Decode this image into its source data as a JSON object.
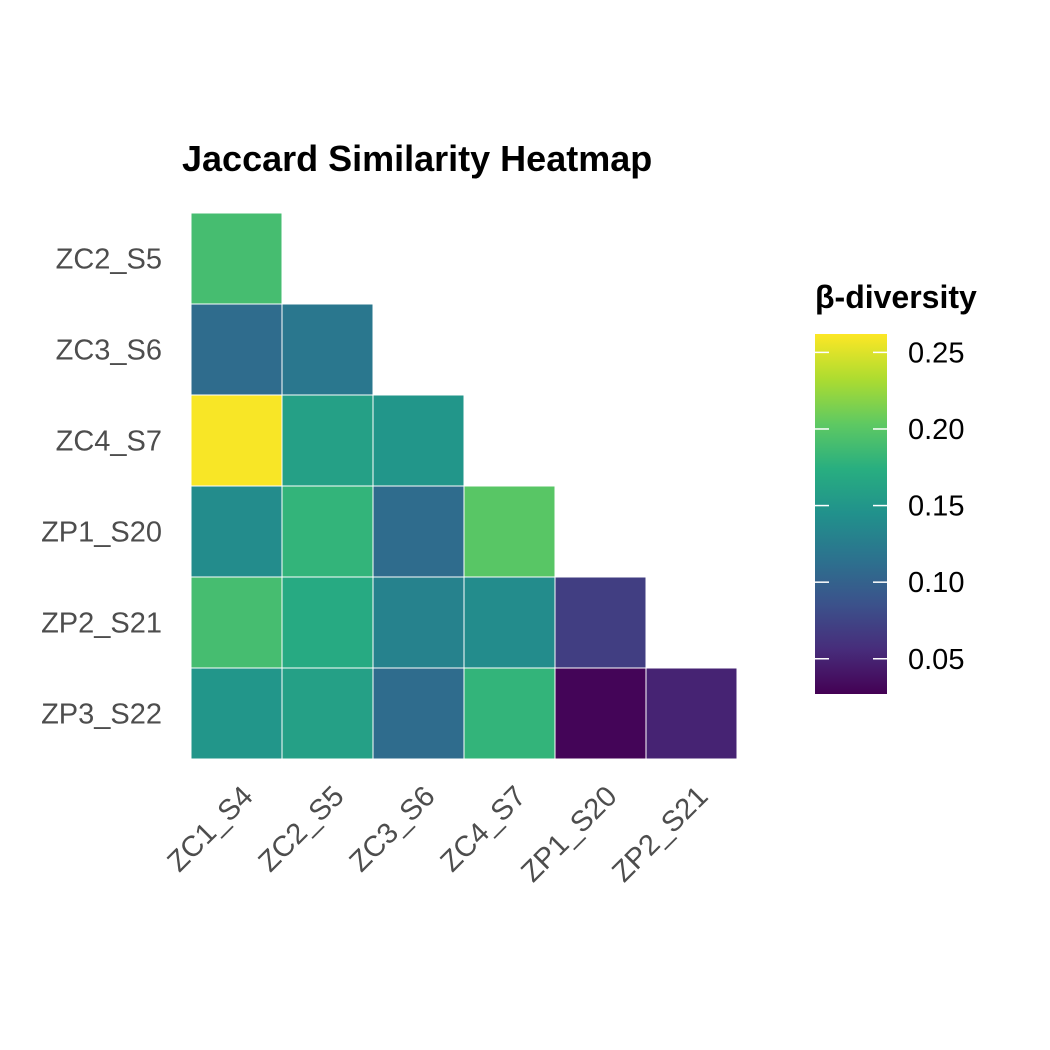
{
  "chart_data": {
    "type": "heatmap",
    "title": "Jaccard Similarity Heatmap",
    "xlabel": "",
    "ylabel": "",
    "x_categories": [
      "ZC1_S4",
      "ZC2_S5",
      "ZC3_S6",
      "ZC4_S7",
      "ZP1_S20",
      "ZP2_S21"
    ],
    "y_categories": [
      "ZC2_S5",
      "ZC3_S6",
      "ZC4_S7",
      "ZP1_S20",
      "ZP2_S21",
      "ZP3_S22"
    ],
    "values": [
      [
        0.19,
        null,
        null,
        null,
        null,
        null
      ],
      [
        0.11,
        0.12,
        null,
        null,
        null,
        null
      ],
      [
        0.26,
        0.16,
        0.15,
        null,
        null,
        null
      ],
      [
        0.14,
        0.18,
        0.11,
        0.2,
        null,
        null
      ],
      [
        0.19,
        0.17,
        0.13,
        0.14,
        0.07,
        null
      ],
      [
        0.15,
        0.16,
        0.11,
        0.18,
        0.03,
        0.05
      ]
    ],
    "legend": {
      "title": "β-diversity",
      "ticks": [
        0.05,
        0.1,
        0.15,
        0.2,
        0.25
      ],
      "tick_labels": [
        "0.05",
        "0.10",
        "0.15",
        "0.20",
        "0.25"
      ],
      "range": [
        0.027,
        0.262
      ],
      "colormap": "viridis",
      "placement": "right"
    },
    "grid": false
  }
}
